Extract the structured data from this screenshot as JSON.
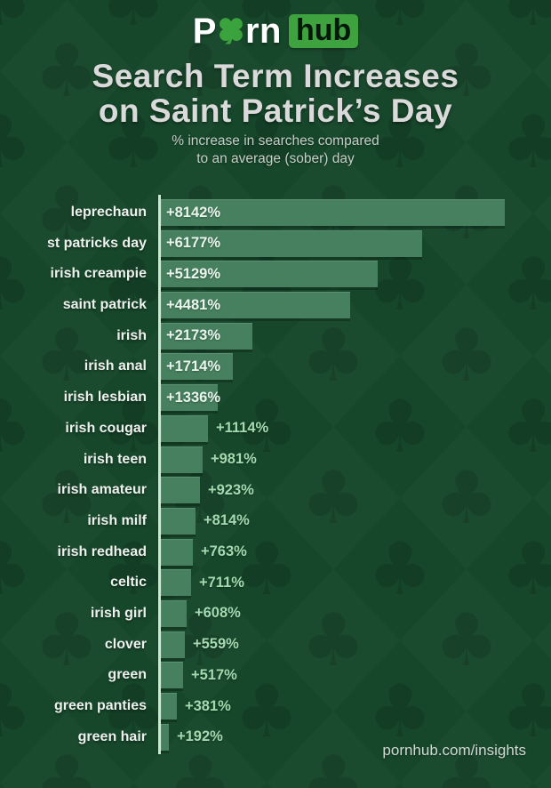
{
  "logo": {
    "word_start": "P",
    "word_end": "rn",
    "box_text": "hub",
    "clover_color": "#3ba33d",
    "box_color": "#3ea23f"
  },
  "header": {
    "title_line1": "Search Term Increases",
    "title_line2": "on Saint Patrick’s Day",
    "subtitle_line1": "% increase in searches compared",
    "subtitle_line2": "to an average (sober) day"
  },
  "chart_data": {
    "type": "bar",
    "orientation": "horizontal",
    "title": "Search Term Increases on Saint Patrick’s Day",
    "subtitle": "% increase in searches compared to an average (sober) day",
    "unit": "%",
    "categories": [
      "leprechaun",
      "st patricks day",
      "irish creampie",
      "saint patrick",
      "irish",
      "irish anal",
      "irish lesbian",
      "irish cougar",
      "irish teen",
      "irish amateur",
      "irish milf",
      "irish redhead",
      "celtic",
      "irish girl",
      "clover",
      "green",
      "green panties",
      "green hair"
    ],
    "values": [
      8142,
      6177,
      5129,
      4481,
      2173,
      1714,
      1336,
      1114,
      981,
      923,
      814,
      763,
      711,
      608,
      559,
      517,
      381,
      192
    ],
    "value_labels": [
      "+8142%",
      "+6177%",
      "+5129%",
      "+4481%",
      "+2173%",
      "+1714%",
      "+1336%",
      "+1114%",
      "+981%",
      "+923%",
      "+814%",
      "+763%",
      "+711%",
      "+608%",
      "+559%",
      "+517%",
      "+381%",
      "+192%"
    ],
    "max_value": 8142,
    "xlim": [
      0,
      8142
    ],
    "grid": false,
    "legend": false,
    "bar_color": "#47805f",
    "axis_color": "#c9e9d2",
    "inside_label_color": "#e9f5ed",
    "outside_label_color": "#a4dab0",
    "background_color": "#16472a"
  },
  "footer": {
    "text": "pornhub.com/insights"
  }
}
